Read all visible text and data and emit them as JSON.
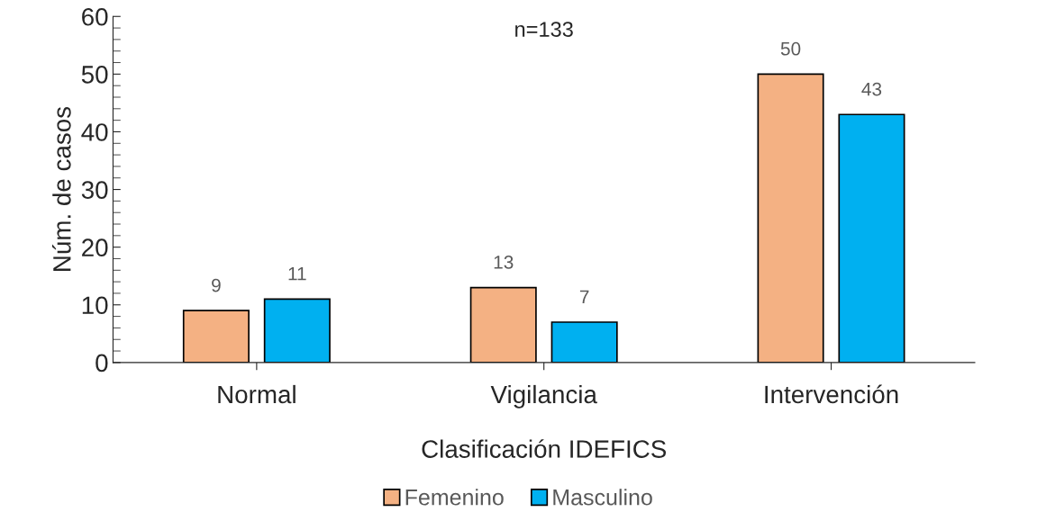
{
  "chart_data": {
    "type": "bar",
    "title": "n=133",
    "xlabel": "Clasificación IDEFICS",
    "ylabel": "Núm. de casos",
    "categories": [
      "Normal",
      "Vigilancia",
      "Intervención"
    ],
    "series": [
      {
        "name": "Femenino",
        "color": "#f4b183",
        "values": [
          9,
          13,
          50
        ]
      },
      {
        "name": "Masculino",
        "color": "#00b0f0",
        "values": [
          11,
          7,
          43
        ]
      }
    ],
    "ylim": [
      0,
      60
    ],
    "yticks": [
      0,
      10,
      20,
      30,
      40,
      50,
      60
    ],
    "data_labels": true,
    "legend": "bottom",
    "grid": false
  }
}
